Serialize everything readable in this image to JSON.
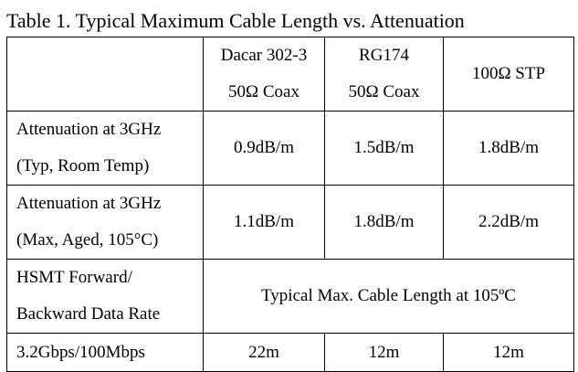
{
  "title": "Table 1. Typical Maximum Cable Length vs. Attenuation",
  "table": {
    "header": [
      {
        "lines": [
          "Dacar 302-3",
          "50Ω Coax"
        ]
      },
      {
        "lines": [
          "RG174",
          "50Ω Coax"
        ]
      },
      {
        "lines": [
          "100Ω STP"
        ]
      }
    ],
    "rows": [
      {
        "label": [
          "Attenuation at 3GHz",
          "(Typ, Room Temp)"
        ],
        "cells": [
          "0.9dB/m",
          "1.5dB/m",
          "1.8dB/m"
        ]
      },
      {
        "label": [
          "Attenuation at 3GHz",
          "(Max, Aged, 105°C)"
        ],
        "cells": [
          "1.1dB/m",
          "1.8dB/m",
          "2.2dB/m"
        ]
      },
      {
        "label": [
          "HSMT Forward/",
          "Backward Data Rate"
        ],
        "span": "Typical Max. Cable Length at 105ºC"
      },
      {
        "label": [
          "3.2Gbps/100Mbps"
        ],
        "cells": [
          "22m",
          "12m",
          "12m"
        ]
      }
    ]
  }
}
